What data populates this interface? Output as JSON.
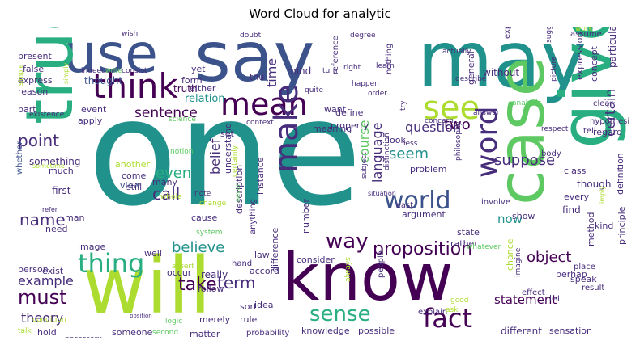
{
  "title": "Word Cloud for analytic",
  "words": {
    "one": "one",
    "say": "say",
    "may": "may",
    "use": "use",
    "will": "will",
    "know": "know",
    "case": "case",
    "give": "give",
    "true": "true",
    "think": "think",
    "mean": "mean",
    "make": "make",
    "see": "see",
    "word": "word",
    "world": "world",
    "fact": "fact",
    "sense": "sense",
    "thing": "thing",
    "way": "way",
    "proposition": "proposition",
    "must": "must",
    "take": "take",
    "believe": "believe",
    "term": "term",
    "name": "name",
    "call": "call",
    "even": "even",
    "point": "point",
    "sentence": "sentence",
    "question": "question",
    "two": "two",
    "seem": "seem",
    "suppose": "suppose",
    "certain": "certain",
    "belief": "belief",
    "language": "language",
    "time": "time",
    "example": "example",
    "theory": "theory",
    "statement": "statement",
    "object": "object",
    "now": "now",
    "course": "course",
    "relation": "relation",
    "truth": "truth",
    "thought": "thought",
    "present": "present",
    "false": "false",
    "express": "express",
    "reason": "reason",
    "part": "part",
    "event": "event",
    "apply": "apply",
    "something": "something",
    "much": "much",
    "first": "first",
    "whether": "whether",
    "view": "view",
    "many": "many",
    "another": "another",
    "come": "come",
    "still": "still",
    "cause": "cause",
    "man": "man",
    "need": "need",
    "image": "image",
    "exist": "exist",
    "person": "person",
    "hold": "hold",
    "talk": "talk",
    "condition": "condition",
    "occur": "occur",
    "well": "well",
    "really": "really",
    "follow": "follow",
    "someone": "someone",
    "second": "second",
    "matter": "matter",
    "rule": "rule",
    "sort": "sort",
    "idea": "idea",
    "merely": "merely",
    "logic": "logic",
    "probability": "probability",
    "knowledge": "knowledge",
    "possible": "possible",
    "different": "different",
    "sensation": "sensation",
    "consider": "consider",
    "accord": "accord",
    "law": "law",
    "description": "description",
    "instance": "instance",
    "understand": "understand",
    "define": "define",
    "property": "property",
    "want": "want",
    "reference": "reference",
    "nothing": "nothing",
    "general": "general",
    "expression": "expression",
    "concept": "concept",
    "particular": "particular",
    "regard": "regard",
    "class": "class",
    "though": "though",
    "every": "every",
    "find": "find",
    "kind": "kind",
    "definition": "definition",
    "principle": "principle",
    "method": "method",
    "perhap": "perhap",
    "let": "let",
    "speak": "speak",
    "chance": "chance",
    "show": "show",
    "state": "state",
    "rather": "rather",
    "argument": "argument",
    "problem": "problem",
    "look": "look",
    "meaning": "meaning",
    "set": "set",
    "form": "form",
    "either": "either",
    "yet": "yet",
    "mind": "mind",
    "thu": "thu",
    "without": "without",
    "experience": "experience",
    "picture": "picture",
    "assume": "assume",
    "work": "work",
    "suggest": "suggest",
    "clear": "clear",
    "hypothesi": "hypothesi",
    "tell": "tell",
    "body": "body",
    "place": "place",
    "result": "result",
    "effect": "effect",
    "imagine": "imagine",
    "explain": "explain",
    "ask": "ask",
    "people": "people",
    "always": "always",
    "hand": "hand",
    "assert": "assert",
    "difference": "difference",
    "anything": "anything",
    "number": "number",
    "involve": "involve",
    "situation": "situation",
    "least": "least",
    "subject": "subject",
    "distinction": "distinction",
    "less": "less",
    "certainly": "certainly",
    "never": "never",
    "whole": "whole",
    "note": "note",
    "change": "change",
    "system": "system",
    "notion": "notion",
    "science": "science",
    "existence": "existence",
    "context": "context",
    "concern": "concern",
    "respect": "respect",
    "answer": "answer",
    "analysis": "analysis",
    "actually": "actually",
    "describe": "describe",
    "happen": "happen",
    "order": "order",
    "turn": "turn",
    "quite": "quite",
    "right": "right",
    "learn": "learn",
    "degree": "degree",
    "doubt": "doubt",
    "indeed": "indeed",
    "write": "write",
    "consist": "consist",
    "wish": "wish",
    "simple": "simple",
    "simply": "simply",
    "sometime": "sometime",
    "refer": "refer",
    "good": "good",
    "imply": "imply",
    "whatever": "whatever",
    "necessary": "necessary",
    "try": "try",
    "philosophy": "philosophy",
    "position": "position"
  },
  "colors": {
    "dark_purple": "#440154",
    "indigo": "#472d7b",
    "slate_blue": "#3b528b",
    "blue": "#2c728e",
    "teal": "#21918c",
    "green_teal": "#28ae80",
    "green": "#5ec962",
    "lime": "#addc30",
    "yellow": "#fde725"
  }
}
